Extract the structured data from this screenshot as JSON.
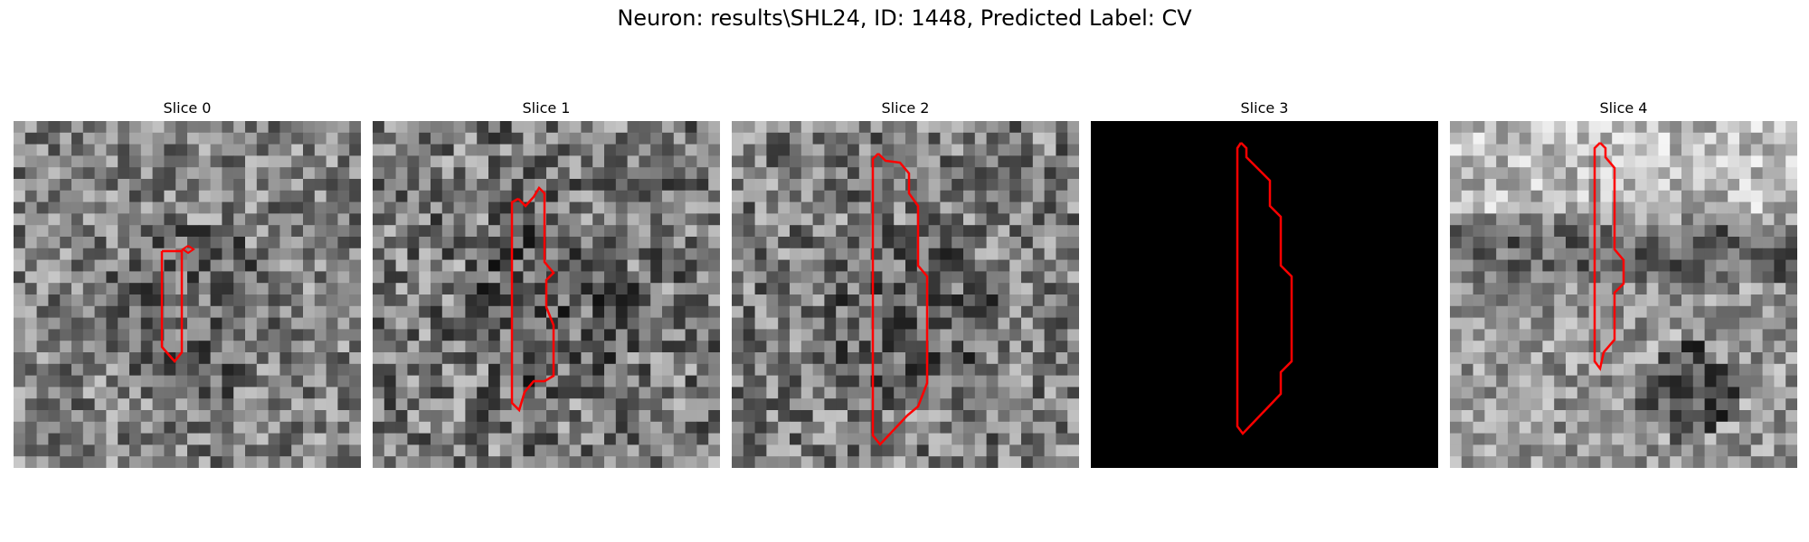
{
  "figure": {
    "title": "Neuron: results\\SHL24, ID: 1448, Predicted Label: CV"
  },
  "colors": {
    "contour": "#ff0000",
    "background": "#ffffff"
  },
  "slices": [
    {
      "title": "Slice 0"
    },
    {
      "title": "Slice 1"
    },
    {
      "title": "Slice 2"
    },
    {
      "title": "Slice 3"
    },
    {
      "title": "Slice 4"
    }
  ]
}
